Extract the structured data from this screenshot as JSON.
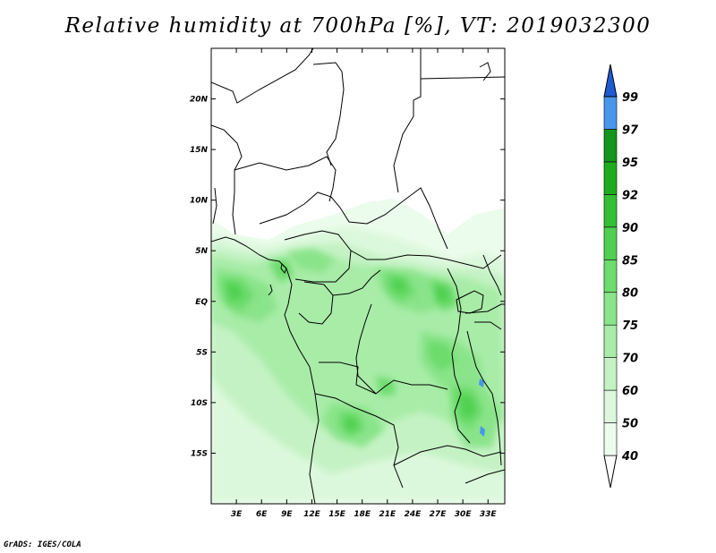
{
  "title": "Relative humidity at 700hPa [%], VT: 2019032300",
  "credit": "GrADS: IGES/COLA",
  "map": {
    "lon_range": [
      0,
      35
    ],
    "lat_range": [
      -20,
      25
    ],
    "lon_ticks": [
      {
        "value": 3,
        "label": "3E"
      },
      {
        "value": 6,
        "label": "6E"
      },
      {
        "value": 9,
        "label": "9E"
      },
      {
        "value": 12,
        "label": "12E"
      },
      {
        "value": 15,
        "label": "15E"
      },
      {
        "value": 18,
        "label": "18E"
      },
      {
        "value": 21,
        "label": "21E"
      },
      {
        "value": 24,
        "label": "24E"
      },
      {
        "value": 27,
        "label": "27E"
      },
      {
        "value": 30,
        "label": "30E"
      },
      {
        "value": 33,
        "label": "33E"
      }
    ],
    "lat_ticks": [
      {
        "value": 20,
        "label": "20N"
      },
      {
        "value": 15,
        "label": "15N"
      },
      {
        "value": 10,
        "label": "10N"
      },
      {
        "value": 5,
        "label": "5N"
      },
      {
        "value": 0,
        "label": "EQ"
      },
      {
        "value": -5,
        "label": "5S"
      },
      {
        "value": -10,
        "label": "10S"
      },
      {
        "value": -15,
        "label": "15S"
      }
    ]
  },
  "colorbar": {
    "levels": [
      {
        "label": "40",
        "color": "#ecfcec"
      },
      {
        "label": "50",
        "color": "#dcf8dc"
      },
      {
        "label": "60",
        "color": "#c4f2c4"
      },
      {
        "label": "70",
        "color": "#a8eca8"
      },
      {
        "label": "75",
        "color": "#8ae48a"
      },
      {
        "label": "80",
        "color": "#6cdc6c"
      },
      {
        "label": "85",
        "color": "#50d050"
      },
      {
        "label": "90",
        "color": "#34c034"
      },
      {
        "label": "92",
        "color": "#1eac1e"
      },
      {
        "label": "95",
        "color": "#12961e"
      },
      {
        "label": "97",
        "color": "#4a96ec"
      },
      {
        "label": "99",
        "color": "#2a72dc"
      }
    ],
    "below_color": "#ffffff",
    "above_color": "#1e5ad2"
  }
}
